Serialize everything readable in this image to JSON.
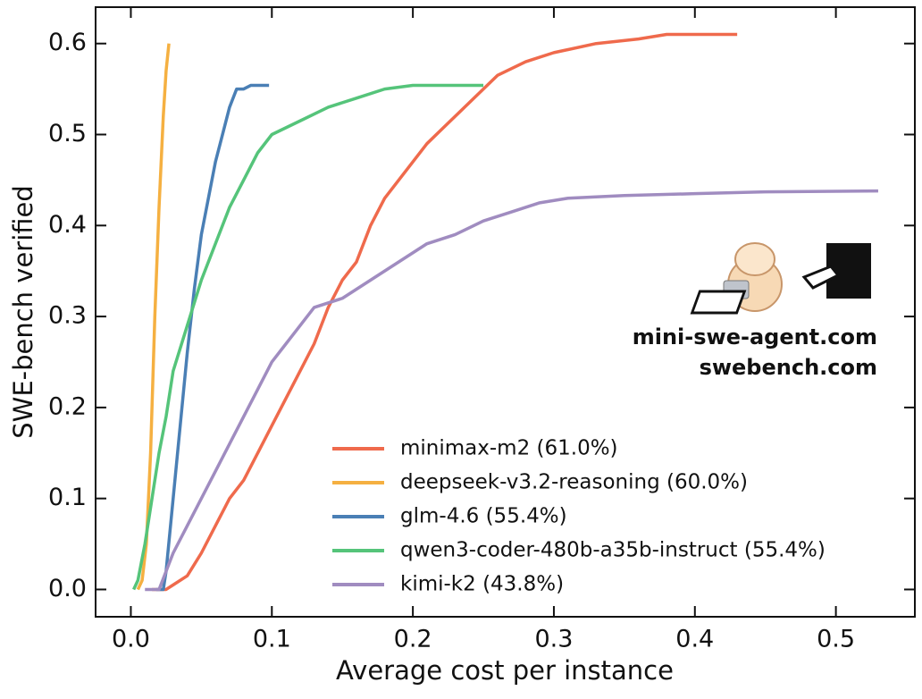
{
  "chart_data": {
    "type": "line",
    "xlabel": "Average cost per instance",
    "ylabel": "SWE-bench verified",
    "xlim": [
      -0.025,
      0.556
    ],
    "ylim": [
      -0.03,
      0.64
    ],
    "xticks": [
      {
        "value": 0,
        "label": "0.0"
      },
      0.1,
      0.2,
      0.3,
      0.4,
      0.5
    ],
    "yticks": [
      {
        "value": 0,
        "label": "0.0"
      },
      0.1,
      0.2,
      0.3,
      0.4,
      0.5,
      0.6
    ],
    "legend": "lower right",
    "annotations": [
      "mini-swe-agent.com",
      "swebench.com"
    ],
    "series": [
      {
        "name": "minimax-m2 (61.0%)",
        "color": "#ef6a4c",
        "x": [
          0.015,
          0.025,
          0.03,
          0.04,
          0.05,
          0.06,
          0.07,
          0.08,
          0.09,
          0.1,
          0.11,
          0.12,
          0.13,
          0.14,
          0.15,
          0.16,
          0.17,
          0.18,
          0.19,
          0.2,
          0.21,
          0.22,
          0.23,
          0.24,
          0.25,
          0.26,
          0.28,
          0.3,
          0.33,
          0.36,
          0.38,
          0.43
        ],
        "values": [
          0,
          0,
          0.005,
          0.015,
          0.04,
          0.07,
          0.1,
          0.12,
          0.15,
          0.18,
          0.21,
          0.24,
          0.27,
          0.31,
          0.34,
          0.36,
          0.4,
          0.43,
          0.45,
          0.47,
          0.49,
          0.505,
          0.52,
          0.535,
          0.55,
          0.565,
          0.58,
          0.59,
          0.6,
          0.605,
          0.61,
          0.61
        ]
      },
      {
        "name": "deepseek-v3.2-reasoning (60.0%)",
        "color": "#f5b041",
        "x": [
          0.005,
          0.008,
          0.011,
          0.014,
          0.017,
          0.02,
          0.023,
          0.025,
          0.027
        ],
        "values": [
          0,
          0.01,
          0.05,
          0.15,
          0.3,
          0.42,
          0.52,
          0.57,
          0.6
        ]
      },
      {
        "name": "glm-4.6 (55.4%)",
        "color": "#4a7fb5",
        "x": [
          0.018,
          0.023,
          0.025,
          0.03,
          0.035,
          0.04,
          0.045,
          0.05,
          0.055,
          0.06,
          0.065,
          0.07,
          0.075,
          0.08,
          0.085,
          0.098
        ],
        "values": [
          0,
          0,
          0.02,
          0.1,
          0.18,
          0.26,
          0.33,
          0.39,
          0.43,
          0.47,
          0.5,
          0.53,
          0.55,
          0.55,
          0.554,
          0.554
        ]
      },
      {
        "name": "qwen3-coder-480b-a35b-instruct (55.4%)",
        "color": "#55c47a",
        "x": [
          0.002,
          0.005,
          0.01,
          0.015,
          0.02,
          0.025,
          0.03,
          0.04,
          0.05,
          0.06,
          0.07,
          0.08,
          0.09,
          0.1,
          0.12,
          0.14,
          0.16,
          0.18,
          0.2,
          0.25
        ],
        "values": [
          0,
          0.01,
          0.05,
          0.1,
          0.15,
          0.19,
          0.24,
          0.29,
          0.34,
          0.38,
          0.42,
          0.45,
          0.48,
          0.5,
          0.515,
          0.53,
          0.54,
          0.55,
          0.554,
          0.554
        ]
      },
      {
        "name": "kimi-k2 (43.8%)",
        "color": "#a08cc0",
        "x": [
          0.01,
          0.02,
          0.025,
          0.03,
          0.04,
          0.05,
          0.06,
          0.07,
          0.08,
          0.09,
          0.1,
          0.11,
          0.12,
          0.13,
          0.15,
          0.17,
          0.19,
          0.21,
          0.23,
          0.25,
          0.27,
          0.29,
          0.31,
          0.35,
          0.4,
          0.45,
          0.53
        ],
        "values": [
          0,
          0,
          0.02,
          0.04,
          0.07,
          0.1,
          0.13,
          0.16,
          0.19,
          0.22,
          0.25,
          0.27,
          0.29,
          0.31,
          0.32,
          0.34,
          0.36,
          0.38,
          0.39,
          0.405,
          0.415,
          0.425,
          0.43,
          0.433,
          0.435,
          0.437,
          0.438
        ]
      }
    ]
  }
}
